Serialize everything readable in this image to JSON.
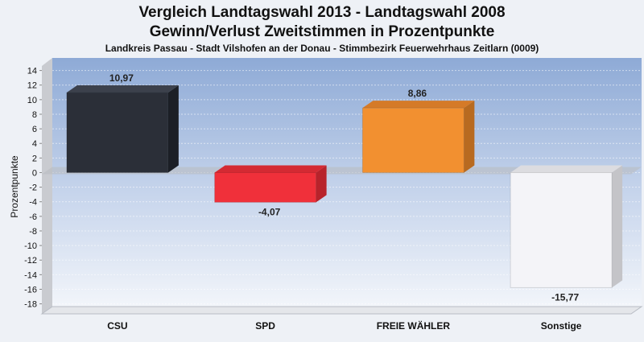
{
  "chart_data": {
    "type": "bar",
    "title": "Vergleich Landtagswahl 2013 - Landtagswahl 2008",
    "title_line2": "Gewinn/Verlust Zweitstimmen in Prozentpunkte",
    "subtitle": "Landkreis Passau - Stadt Vilshofen an der Donau - Stimmbezirk Feuerwehrhaus Zeitlarn (0009)",
    "xlabel": "",
    "ylabel": "Prozentpunkte",
    "ylim": [
      -18,
      14
    ],
    "yticks": [
      14,
      12,
      10,
      8,
      6,
      4,
      2,
      0,
      -2,
      -4,
      -6,
      -8,
      -10,
      -12,
      -14,
      -16,
      -18
    ],
    "grid": true,
    "categories": [
      "CSU",
      "SPD",
      "FREIE WÄHLER",
      "Sonstige"
    ],
    "values": [
      10.97,
      -4.07,
      8.86,
      -15.77
    ],
    "value_labels": [
      "10,97",
      "-4,07",
      "8,86",
      "-15,77"
    ],
    "colors": [
      "#2b2f38",
      "#f0303a",
      "#f29030",
      "#f4f4f8"
    ],
    "side_colors": [
      "#1c1f26",
      "#b8232b",
      "#b86a20",
      "#c4c4c8"
    ],
    "top_colors": [
      "#3c414c",
      "#d42a33",
      "#d57a28",
      "#dcdce0"
    ]
  }
}
